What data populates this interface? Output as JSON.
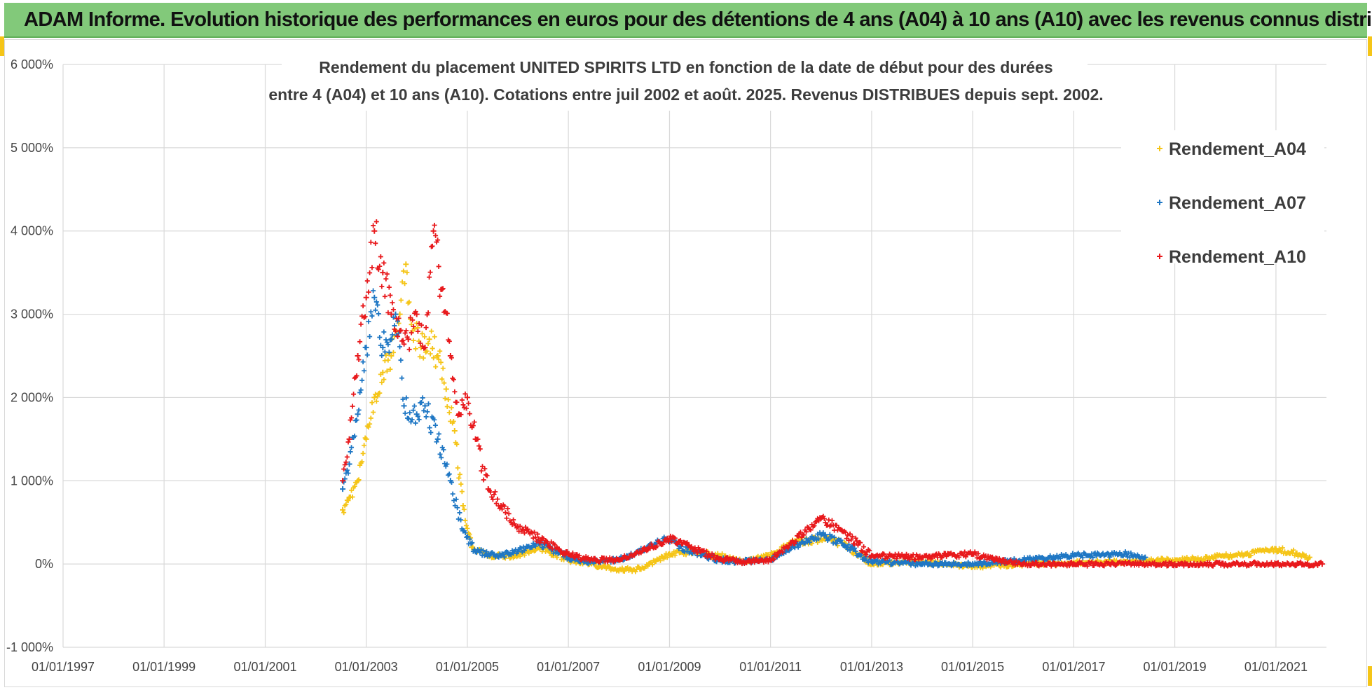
{
  "header": {
    "title": "ADAM Informe. Evolution historique des performances en euros pour des détentions de 4 ans (A04) à 10 ans (A10) avec les revenus connus distribués"
  },
  "colors": {
    "banner": "#82c97a",
    "A04": "#f5c518",
    "A07": "#1f77c4",
    "A10": "#e8191c",
    "grid": "#d9d9d9"
  },
  "chart_data": {
    "type": "scatter",
    "title_lines": [
      "Rendement du placement UNITED SPIRITS LTD en fonction de la date de début pour des durées",
      "entre 4 (A04) et 10 ans (A10). Cotations entre juil 2002 et août. 2025. Revenus DISTRIBUES depuis sept. 2002."
    ],
    "xlabel": "",
    "ylabel": "",
    "x_range": [
      "1997-01-01",
      "2022-01-01"
    ],
    "x_ticks": [
      "01/01/1997",
      "01/01/1999",
      "01/01/2001",
      "01/01/2003",
      "01/01/2005",
      "01/01/2007",
      "01/01/2009",
      "01/01/2011",
      "01/01/2013",
      "01/01/2015",
      "01/01/2017",
      "01/01/2019",
      "01/01/2021"
    ],
    "y_range": [
      -1000,
      6000
    ],
    "y_ticks": [
      -1000,
      0,
      1000,
      2000,
      3000,
      4000,
      5000,
      6000
    ],
    "y_tick_labels": [
      "-1 000%",
      "0%",
      "1 000%",
      "2 000%",
      "3 000%",
      "4 000%",
      "5 000%",
      "6 000%"
    ],
    "grid": true,
    "legend_position": "top-right",
    "marker": "+",
    "series": [
      {
        "name": "Rendement_A04",
        "points": [
          [
            "2002-07-15",
            650
          ],
          [
            "2002-09-01",
            800
          ],
          [
            "2002-11-01",
            1000
          ],
          [
            "2003-01-01",
            1500
          ],
          [
            "2003-03-01",
            2000
          ],
          [
            "2003-05-01",
            2300
          ],
          [
            "2003-07-01",
            2500
          ],
          [
            "2003-09-01",
            3000
          ],
          [
            "2003-10-15",
            3600
          ],
          [
            "2003-12-01",
            2800
          ],
          [
            "2004-02-01",
            2600
          ],
          [
            "2004-04-01",
            2700
          ],
          [
            "2004-06-01",
            2500
          ],
          [
            "2004-08-01",
            2100
          ],
          [
            "2004-10-01",
            1600
          ],
          [
            "2004-12-01",
            700
          ],
          [
            "2005-02-01",
            200
          ],
          [
            "2005-06-01",
            100
          ],
          [
            "2006-01-01",
            100
          ],
          [
            "2006-06-01",
            200
          ],
          [
            "2007-01-01",
            50
          ],
          [
            "2007-06-01",
            0
          ],
          [
            "2008-01-01",
            -80
          ],
          [
            "2008-06-01",
            -60
          ],
          [
            "2009-01-01",
            120
          ],
          [
            "2009-06-01",
            150
          ],
          [
            "2010-01-01",
            100
          ],
          [
            "2010-06-01",
            30
          ],
          [
            "2011-01-01",
            100
          ],
          [
            "2011-06-01",
            250
          ],
          [
            "2012-01-01",
            300
          ],
          [
            "2012-06-01",
            250
          ],
          [
            "2013-01-01",
            0
          ],
          [
            "2014-01-01",
            30
          ],
          [
            "2015-01-01",
            -30
          ],
          [
            "2016-01-01",
            0
          ],
          [
            "2017-01-01",
            20
          ],
          [
            "2018-01-01",
            30
          ],
          [
            "2019-01-01",
            50
          ],
          [
            "2019-06-01",
            60
          ],
          [
            "2020-06-01",
            120
          ],
          [
            "2021-01-01",
            180
          ],
          [
            "2021-06-01",
            130
          ],
          [
            "2021-09-01",
            80
          ]
        ]
      },
      {
        "name": "Rendement_A07",
        "points": [
          [
            "2002-07-15",
            900
          ],
          [
            "2002-09-01",
            1200
          ],
          [
            "2002-11-01",
            1800
          ],
          [
            "2003-01-01",
            2600
          ],
          [
            "2003-03-01",
            3200
          ],
          [
            "2003-05-01",
            2600
          ],
          [
            "2003-07-01",
            2700
          ],
          [
            "2003-08-01",
            3000
          ],
          [
            "2003-10-01",
            1900
          ],
          [
            "2004-01-01",
            1800
          ],
          [
            "2004-03-01",
            1900
          ],
          [
            "2004-06-01",
            1500
          ],
          [
            "2004-09-01",
            1000
          ],
          [
            "2004-12-01",
            400
          ],
          [
            "2005-03-01",
            150
          ],
          [
            "2005-09-01",
            100
          ],
          [
            "2006-01-01",
            150
          ],
          [
            "2006-06-01",
            250
          ],
          [
            "2007-01-01",
            80
          ],
          [
            "2007-06-01",
            30
          ],
          [
            "2008-01-01",
            50
          ],
          [
            "2008-06-01",
            150
          ],
          [
            "2008-12-01",
            300
          ],
          [
            "2009-06-01",
            150
          ],
          [
            "2010-01-01",
            50
          ],
          [
            "2010-06-01",
            30
          ],
          [
            "2011-01-01",
            50
          ],
          [
            "2011-06-01",
            200
          ],
          [
            "2012-01-01",
            350
          ],
          [
            "2012-06-01",
            250
          ],
          [
            "2013-01-01",
            30
          ],
          [
            "2014-01-01",
            0
          ],
          [
            "2015-01-01",
            0
          ],
          [
            "2016-01-01",
            50
          ],
          [
            "2017-01-01",
            100
          ],
          [
            "2018-01-01",
            120
          ],
          [
            "2018-06-01",
            80
          ]
        ]
      },
      {
        "name": "Rendement_A10",
        "points": [
          [
            "2002-07-15",
            1000
          ],
          [
            "2002-09-01",
            1500
          ],
          [
            "2002-11-01",
            2500
          ],
          [
            "2003-01-01",
            3200
          ],
          [
            "2003-03-01",
            4000
          ],
          [
            "2003-05-01",
            3500
          ],
          [
            "2003-07-01",
            3000
          ],
          [
            "2003-09-01",
            2800
          ],
          [
            "2003-11-01",
            2700
          ],
          [
            "2004-01-01",
            3000
          ],
          [
            "2004-03-01",
            2600
          ],
          [
            "2004-05-01",
            4000
          ],
          [
            "2004-07-01",
            3300
          ],
          [
            "2004-09-01",
            2500
          ],
          [
            "2004-11-01",
            1800
          ],
          [
            "2005-01-01",
            2000
          ],
          [
            "2005-03-01",
            1500
          ],
          [
            "2005-06-01",
            900
          ],
          [
            "2005-09-01",
            700
          ],
          [
            "2006-01-01",
            450
          ],
          [
            "2006-06-01",
            300
          ],
          [
            "2007-01-01",
            120
          ],
          [
            "2007-06-01",
            50
          ],
          [
            "2008-01-01",
            50
          ],
          [
            "2008-06-01",
            150
          ],
          [
            "2009-01-01",
            300
          ],
          [
            "2009-06-01",
            200
          ],
          [
            "2010-01-01",
            60
          ],
          [
            "2010-06-01",
            30
          ],
          [
            "2011-01-01",
            50
          ],
          [
            "2011-06-01",
            250
          ],
          [
            "2012-01-01",
            550
          ],
          [
            "2012-06-01",
            400
          ],
          [
            "2013-01-01",
            100
          ],
          [
            "2014-01-01",
            80
          ],
          [
            "2014-06-01",
            100
          ],
          [
            "2015-01-01",
            120
          ],
          [
            "2015-06-01",
            50
          ],
          [
            "2016-01-01",
            0
          ],
          [
            "2017-01-01",
            0
          ],
          [
            "2018-01-01",
            0
          ],
          [
            "2019-01-01",
            0
          ],
          [
            "2020-01-01",
            0
          ],
          [
            "2021-01-01",
            0
          ],
          [
            "2021-12-01",
            0
          ]
        ]
      }
    ]
  }
}
